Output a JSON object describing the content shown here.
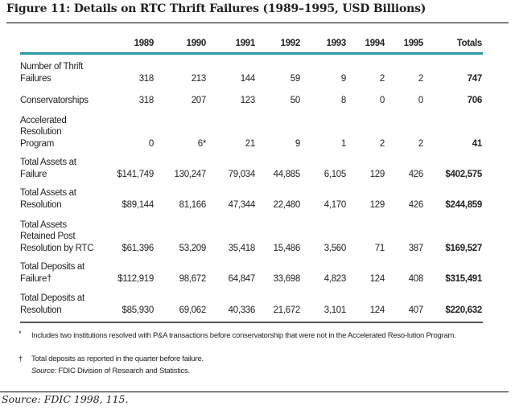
{
  "title": "Figure 11: Details on RTC Thrift Failures (1989–1995, USD Billions)",
  "table": {
    "columns": [
      "1989",
      "1990",
      "1991",
      "1992",
      "1993",
      "1994",
      "1995",
      "Totals"
    ],
    "rows": [
      {
        "label": [
          "Number of Thrift",
          "Failures"
        ],
        "values": [
          "318",
          "213",
          "144",
          "59",
          "9",
          "2",
          "2",
          "747"
        ]
      },
      {
        "label": [
          "Conservatorships"
        ],
        "values": [
          "318",
          "207",
          "123",
          "50",
          "8",
          "0",
          "0",
          "706"
        ]
      },
      {
        "label": [
          "Accelerated",
          "Resolution",
          "Program"
        ],
        "values": [
          "0",
          "6*",
          "21",
          "9",
          "1",
          "2",
          "2",
          "41"
        ]
      },
      {
        "label": [
          "Total Assets at",
          "Failure"
        ],
        "values": [
          "$141,749",
          "130,247",
          "79,034",
          "44,885",
          "6,105",
          "129",
          "426",
          "$402,575"
        ]
      },
      {
        "label": [
          "Total Assets at",
          "Resolution"
        ],
        "values": [
          "$89,144",
          "81,166",
          "47,344",
          "22,480",
          "4,170",
          "129",
          "426",
          "$244,859"
        ]
      },
      {
        "label": [
          "Total Assets",
          "Retained Post",
          "Resolution by RTC"
        ],
        "values": [
          "$61,396",
          "53,209",
          "35,418",
          "15,486",
          "3,560",
          "71",
          "387",
          "$169,527"
        ]
      },
      {
        "label": [
          "Total Deposits at",
          "Failure†"
        ],
        "values": [
          "$112,919",
          "98,672",
          "64,847",
          "33,698",
          "4,823",
          "124",
          "408",
          "$315,491"
        ]
      },
      {
        "label": [
          "Total Deposits at",
          "Resolution"
        ],
        "values": [
          "$85,930",
          "69,062",
          "40,336",
          "21,672",
          "3,101",
          "124",
          "407",
          "$220,632"
        ]
      }
    ]
  },
  "footnotes": {
    "star_mark": "*",
    "star_text": "Includes two institutions resolved with P&A transactions before conservatorship that were not in the Accelerated Reso-lution Program.",
    "dagger_mark": "†",
    "dagger_text": "Total deposits as reported in the quarter before failure.",
    "source_label": "Source:",
    "source_text": " FDIC Division of Research and Statistics."
  },
  "source": "Source: FDIC 1998, 115.",
  "colors": {
    "accent_rule": "#2a9aa6"
  }
}
